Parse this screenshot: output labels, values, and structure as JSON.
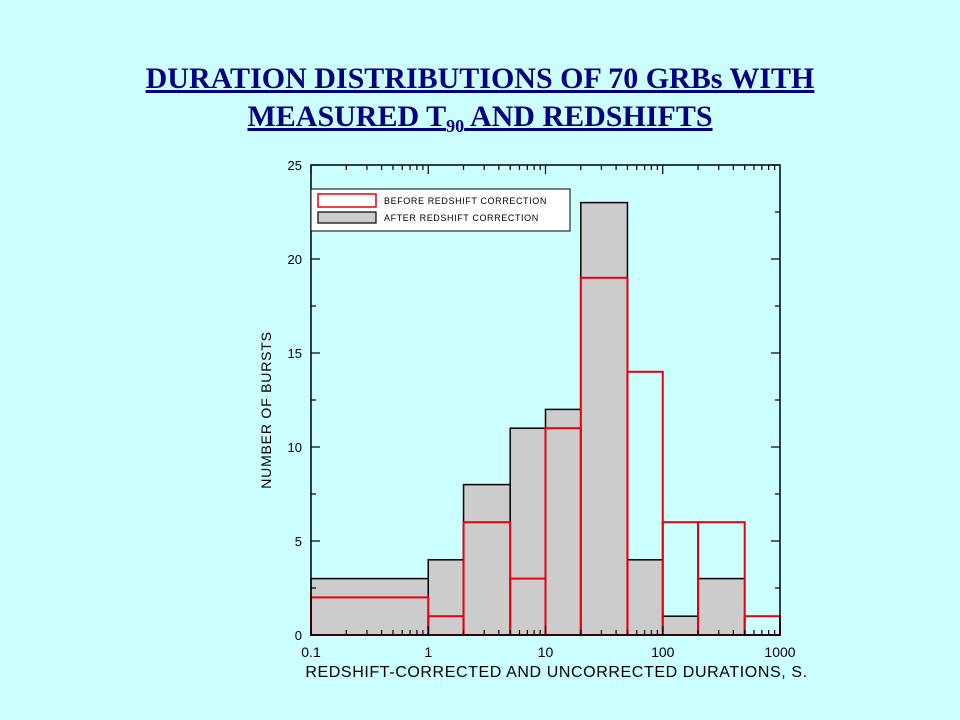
{
  "title": {
    "line1": "DURATION DISTRIBUTIONS  OF 70 GRBs WITH",
    "line2_pre": "MEASURED T",
    "line2_sub": "90",
    "line2_post": " AND REDSHIFTS"
  },
  "colors": {
    "background": "#ccffff",
    "title": "#000080",
    "before_outline": "#e8000b",
    "after_fill": "#cccccc",
    "after_outline": "#000000"
  },
  "chart_data": {
    "type": "bar",
    "xscale": "log",
    "xlim": [
      0.1,
      1000
    ],
    "ylim": [
      0,
      25
    ],
    "xlabel": "REDSHIFT-CORRECTED AND UNCORRECTED DURATIONS, S.",
    "ylabel": "NUMBER OF BURSTS",
    "xticks": [
      {
        "value": 0.1,
        "label": "0.1"
      },
      {
        "value": 1,
        "label": "1"
      },
      {
        "value": 10,
        "label": "10"
      },
      {
        "value": 100,
        "label": "100"
      },
      {
        "value": 1000,
        "label": "1000"
      }
    ],
    "yticks": [
      {
        "value": 0,
        "label": "0"
      },
      {
        "value": 5,
        "label": "5"
      },
      {
        "value": 10,
        "label": "10"
      },
      {
        "value": 15,
        "label": "15"
      },
      {
        "value": 20,
        "label": "20"
      },
      {
        "value": 25,
        "label": "25"
      }
    ],
    "legend_position": "top-left",
    "series": [
      {
        "name": "AFTER REDSHIFT CORRECTION",
        "style": "filled",
        "bins": [
          {
            "from": 0.1,
            "to": 1,
            "count": 3
          },
          {
            "from": 1,
            "to": 2,
            "count": 4
          },
          {
            "from": 2,
            "to": 5,
            "count": 8
          },
          {
            "from": 5,
            "to": 10,
            "count": 11
          },
          {
            "from": 10,
            "to": 20,
            "count": 12
          },
          {
            "from": 20,
            "to": 50,
            "count": 23
          },
          {
            "from": 50,
            "to": 100,
            "count": 4
          },
          {
            "from": 100,
            "to": 200,
            "count": 1
          },
          {
            "from": 200,
            "to": 500,
            "count": 3
          }
        ]
      },
      {
        "name": "BEFORE REDSHIFT CORRECTION",
        "style": "outline",
        "bins": [
          {
            "from": 0.1,
            "to": 1,
            "count": 2
          },
          {
            "from": 1,
            "to": 2,
            "count": 1
          },
          {
            "from": 2,
            "to": 5,
            "count": 6
          },
          {
            "from": 5,
            "to": 10,
            "count": 3
          },
          {
            "from": 10,
            "to": 20,
            "count": 11
          },
          {
            "from": 20,
            "to": 50,
            "count": 19
          },
          {
            "from": 50,
            "to": 100,
            "count": 14
          },
          {
            "from": 100,
            "to": 200,
            "count": 6
          },
          {
            "from": 200,
            "to": 500,
            "count": 6
          },
          {
            "from": 500,
            "to": 1000,
            "count": 1
          }
        ]
      }
    ]
  }
}
